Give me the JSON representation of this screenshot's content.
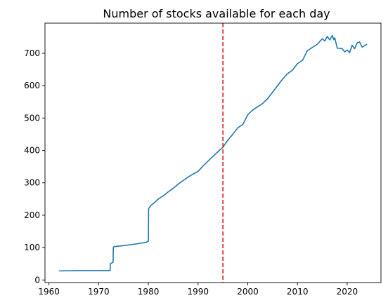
{
  "chart_data": {
    "type": "line",
    "title": "Number of stocks available for each day",
    "xlabel": "",
    "ylabel": "",
    "xlim": [
      1959.2,
      2026.8
    ],
    "ylim": [
      -8,
      793
    ],
    "xticks": [
      1960,
      1970,
      1980,
      1990,
      2000,
      2010,
      2020
    ],
    "xtick_labels": [
      "1960",
      "1970",
      "1980",
      "1990",
      "2000",
      "2010",
      "2020"
    ],
    "yticks": [
      0,
      100,
      200,
      300,
      400,
      500,
      600,
      700
    ],
    "ytick_labels": [
      "0",
      "100",
      "200",
      "300",
      "400",
      "500",
      "600",
      "700"
    ],
    "grid": false,
    "legend": "none",
    "series": [
      {
        "color": "#1f77b4",
        "x": [
          1962.0,
          1966.0,
          1970.0,
          1972.3,
          1972.35,
          1972.9,
          1972.95,
          1973.1,
          1975.0,
          1977.0,
          1979.5,
          1980.0,
          1980.05,
          1980.5,
          1981.0,
          1982.0,
          1983.0,
          1984.0,
          1985.0,
          1986.0,
          1987.0,
          1988.0,
          1989.0,
          1990.0,
          1991.0,
          1992.0,
          1993.0,
          1994.0,
          1995.0,
          1996.0,
          1997.0,
          1998.0,
          1999.0,
          2000.0,
          2001.0,
          2002.0,
          2003.0,
          2004.0,
          2005.0,
          2006.0,
          2007.0,
          2008.0,
          2009.0,
          2010.0,
          2011.0,
          2012.0,
          2013.0,
          2014.0,
          2015.0,
          2015.5,
          2016.0,
          2016.5,
          2017.0,
          2017.3,
          2017.5,
          2018.0,
          2019.0,
          2019.5,
          2020.0,
          2020.5,
          2021.0,
          2021.5,
          2022.0,
          2022.5,
          2023.0,
          2024.0
        ],
        "y": [
          28,
          29,
          29,
          29,
          50,
          55,
          100,
          103,
          106,
          110,
          116,
          120,
          220,
          230,
          236,
          250,
          260,
          272,
          283,
          296,
          307,
          318,
          327,
          335,
          352,
          367,
          382,
          396,
          410,
          432,
          450,
          470,
          480,
          510,
          525,
          535,
          545,
          560,
          580,
          600,
          620,
          637,
          648,
          668,
          678,
          708,
          718,
          728,
          745,
          738,
          752,
          741,
          755,
          742,
          748,
          716,
          714,
          704,
          710,
          702,
          725,
          714,
          732,
          735,
          719,
          728
        ]
      }
    ],
    "reference_lines": [
      {
        "orientation": "vertical",
        "x": 1995.0,
        "color": "#e31a1c",
        "style": "dashed"
      }
    ],
    "colors": {
      "series": "#1f77b4",
      "reference": "#e31a1c",
      "axes": "#000000"
    }
  }
}
